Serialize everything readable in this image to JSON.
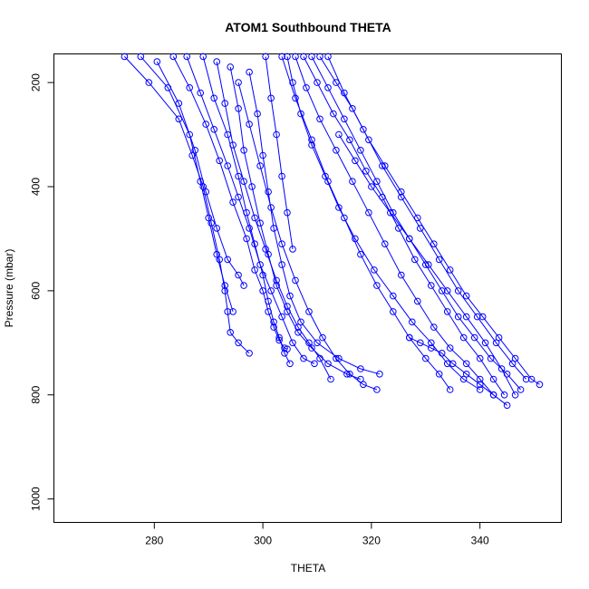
{
  "chart_data": {
    "type": "line",
    "title": "ATOM1 Southbound THETA",
    "xlabel": "THETA",
    "ylabel": "Pressure (mbar)",
    "xlim": [
      261.5,
      355
    ],
    "ylim": [
      1045,
      145
    ],
    "y_reversed": true,
    "x_ticks": [
      280,
      300,
      320,
      340
    ],
    "y_ticks": [
      200,
      400,
      600,
      800,
      1000
    ],
    "markers": "open-circle",
    "color": "#0000ff",
    "grid": false,
    "series": [
      {
        "x": [
          274.5,
          279.0,
          284.5,
          287.0,
          289.0,
          290.5,
          292.0,
          293.0,
          293.5,
          294.0,
          295.5,
          297.5
        ],
        "y": [
          150,
          200,
          270,
          340,
          400,
          470,
          540,
          600,
          640,
          680,
          700,
          720
        ]
      },
      {
        "x": [
          277.5,
          282.5,
          286.5,
          288.5,
          290.0,
          291.5,
          293.0,
          294.5
        ],
        "y": [
          150,
          210,
          300,
          390,
          460,
          530,
          590,
          640
        ]
      },
      {
        "x": [
          280.5,
          284.5,
          287.5,
          289.5,
          291.5,
          293.5,
          295.5,
          296.5
        ],
        "y": [
          160,
          240,
          330,
          410,
          480,
          540,
          570,
          590
        ]
      },
      {
        "x": [
          283.5,
          286.5,
          289.5,
          292.0,
          294.5,
          297.0,
          298.5,
          300.0,
          301.0,
          302.0,
          303.0,
          304.0,
          304.5
        ],
        "y": [
          150,
          210,
          280,
          350,
          430,
          500,
          560,
          600,
          640,
          670,
          695,
          710,
          712
        ]
      },
      {
        "x": [
          286.0,
          288.5,
          291.0,
          293.5,
          295.5,
          297.5,
          299.5,
          301.5,
          303.5,
          305.5,
          307.5,
          309.5
        ],
        "y": [
          150,
          220,
          290,
          360,
          420,
          480,
          550,
          600,
          650,
          700,
          730,
          740
        ]
      },
      {
        "x": [
          289.0,
          291.0,
          293.5,
          295.5,
          297.0,
          298.5,
          300.0,
          301.0,
          302.0,
          303.0,
          304.0,
          305.0
        ],
        "y": [
          150,
          230,
          300,
          380,
          450,
          510,
          570,
          620,
          660,
          690,
          720,
          740
        ]
      },
      {
        "x": [
          291.5,
          293.0,
          294.5,
          296.5,
          298.5,
          300.5,
          302.5,
          304.5,
          306.5,
          308.5,
          310.5,
          312.5
        ],
        "y": [
          160,
          240,
          320,
          390,
          460,
          520,
          580,
          630,
          670,
          700,
          730,
          770
        ]
      },
      {
        "x": [
          294.0,
          295.5,
          296.5,
          298.0,
          299.5,
          301.0,
          302.5,
          304.5,
          306.5,
          309.0,
          312.0,
          315.5,
          318.0
        ],
        "y": [
          170,
          250,
          330,
          400,
          470,
          530,
          590,
          640,
          680,
          710,
          740,
          760,
          770
        ]
      },
      {
        "x": [
          297.5,
          299.0,
          300.0,
          301.0,
          302.0,
          303.5,
          305.0,
          307.0,
          310.0,
          314.0,
          318.0,
          321.5
        ],
        "y": [
          180,
          260,
          340,
          410,
          480,
          550,
          610,
          660,
          700,
          730,
          750,
          760
        ]
      },
      {
        "x": [
          300.5,
          301.5,
          302.5,
          303.5,
          304.5,
          305.5
        ],
        "y": [
          150,
          230,
          300,
          380,
          450,
          520
        ]
      },
      {
        "x": [
          303.5,
          306.0,
          309.0,
          312.0,
          315.0,
          318.0,
          321.0,
          324.0,
          327.0,
          330.0,
          332.5,
          334.5
        ],
        "y": [
          150,
          230,
          310,
          390,
          460,
          530,
          590,
          640,
          690,
          730,
          760,
          790
        ]
      },
      {
        "x": [
          304.5,
          305.5,
          307.0,
          309.0,
          311.5,
          314.0,
          317.0,
          320.5,
          324.0,
          327.5,
          331.0,
          334.0,
          337.0,
          340.0
        ],
        "y": [
          150,
          200,
          260,
          320,
          380,
          440,
          500,
          560,
          610,
          660,
          700,
          740,
          770,
          790
        ]
      },
      {
        "x": [
          306.0,
          308.0,
          310.5,
          313.5,
          316.5,
          319.5,
          322.5,
          325.5,
          328.5,
          331.5,
          334.5,
          337.5,
          340.0,
          342.5
        ],
        "y": [
          150,
          210,
          270,
          330,
          390,
          450,
          510,
          570,
          620,
          670,
          710,
          740,
          770,
          800
        ]
      },
      {
        "x": [
          307.5,
          310.0,
          313.0,
          316.0,
          319.0,
          322.0,
          325.0,
          328.0,
          331.0,
          334.0,
          337.0,
          340.0,
          342.5,
          344.5
        ],
        "y": [
          150,
          200,
          260,
          310,
          370,
          420,
          480,
          540,
          590,
          640,
          690,
          730,
          770,
          800
        ]
      },
      {
        "x": [
          309.0,
          312.0,
          315.0,
          318.0,
          321.0,
          324.0,
          327.0,
          330.0,
          333.0,
          336.0,
          339.0,
          342.0,
          345.0,
          347.5
        ],
        "y": [
          150,
          210,
          270,
          330,
          390,
          450,
          500,
          550,
          600,
          650,
          690,
          730,
          760,
          790
        ]
      },
      {
        "x": [
          310.5,
          313.5,
          316.5,
          319.5,
          322.5,
          325.5,
          328.5,
          331.5,
          334.5,
          337.5,
          340.5,
          343.5,
          346.5,
          349.5,
          351.0
        ],
        "y": [
          150,
          200,
          250,
          310,
          360,
          410,
          460,
          510,
          560,
          610,
          650,
          690,
          730,
          770,
          780
        ]
      },
      {
        "x": [
          312.0,
          315.0,
          318.5,
          322.0,
          325.5,
          329.0,
          332.5,
          336.0,
          339.5,
          343.0,
          346.0,
          348.5
        ],
        "y": [
          150,
          220,
          290,
          360,
          420,
          480,
          540,
          600,
          650,
          700,
          740,
          770
        ]
      },
      {
        "x": [
          295.5,
          297.5,
          299.5,
          301.5,
          303.5,
          306.0,
          308.5,
          311.0,
          313.5,
          316.0,
          318.5,
          321.0
        ],
        "y": [
          200,
          280,
          360,
          440,
          510,
          580,
          640,
          690,
          730,
          760,
          780,
          790
        ]
      },
      {
        "x": [
          314.0,
          317.0,
          320.0,
          323.5,
          327.0,
          330.5,
          334.0,
          337.5,
          341.0,
          344.0,
          346.5
        ],
        "y": [
          300,
          350,
          400,
          450,
          500,
          550,
          600,
          650,
          700,
          750,
          800
        ]
      },
      {
        "x": [
          327.0,
          329.0,
          331.0,
          333.0,
          335.0,
          337.5,
          340.0,
          342.5,
          345.0
        ],
        "y": [
          690,
          700,
          710,
          720,
          740,
          760,
          780,
          800,
          820
        ]
      }
    ]
  }
}
